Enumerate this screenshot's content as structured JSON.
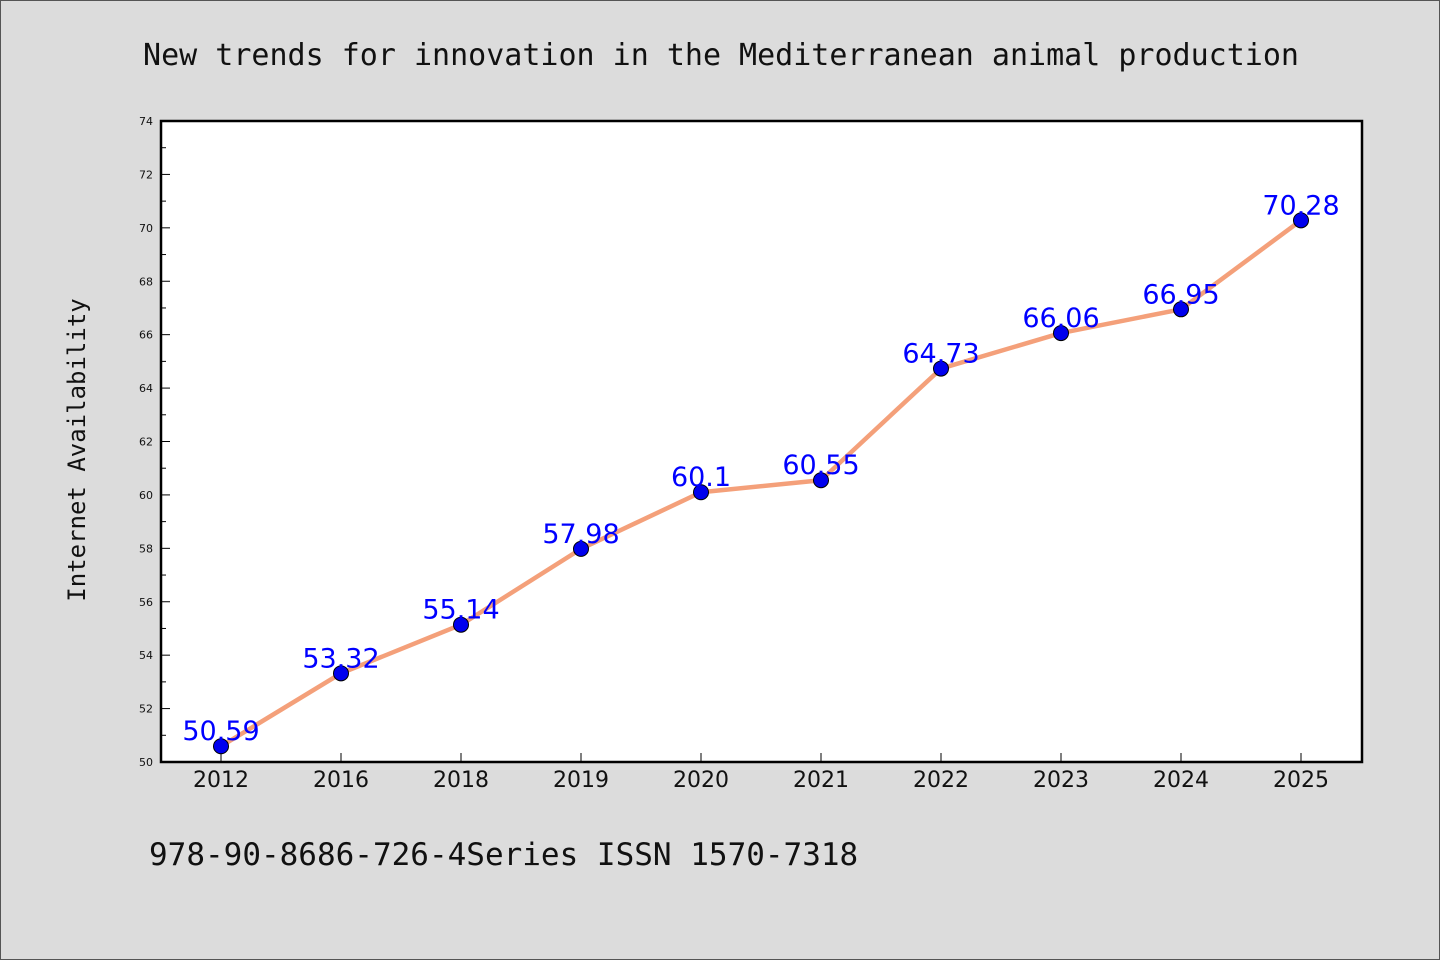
{
  "chart_data": {
    "type": "line",
    "title": "New trends for innovation in the Mediterranean animal production",
    "xlabel": "",
    "ylabel": "Internet Availability",
    "categories": [
      "2012",
      "2016",
      "2018",
      "2019",
      "2020",
      "2021",
      "2022",
      "2023",
      "2024",
      "2025"
    ],
    "series": [
      {
        "values": [
          50.59,
          53.32,
          55.14,
          57.98,
          60.1,
          60.55,
          64.73,
          66.06,
          66.95,
          70.28
        ],
        "labels": [
          "50.59",
          "53.32",
          "55.14",
          "57.98",
          "60.1",
          "60.55",
          "64.73",
          "66.06",
          "66.95",
          "70.28"
        ],
        "line_color": "#f4a07a",
        "marker_color": "#0000ee"
      }
    ],
    "ylim": [
      50,
      74
    ],
    "yticks": [
      "50",
      "52",
      "54",
      "56",
      "58",
      "60",
      "62",
      "64",
      "66",
      "68",
      "70",
      "72",
      "74"
    ],
    "label_color": "#0000ff",
    "grid": false,
    "legend": "none"
  },
  "footer": {
    "text": "978-90-8686-726-4Series ISSN 1570-7318"
  }
}
